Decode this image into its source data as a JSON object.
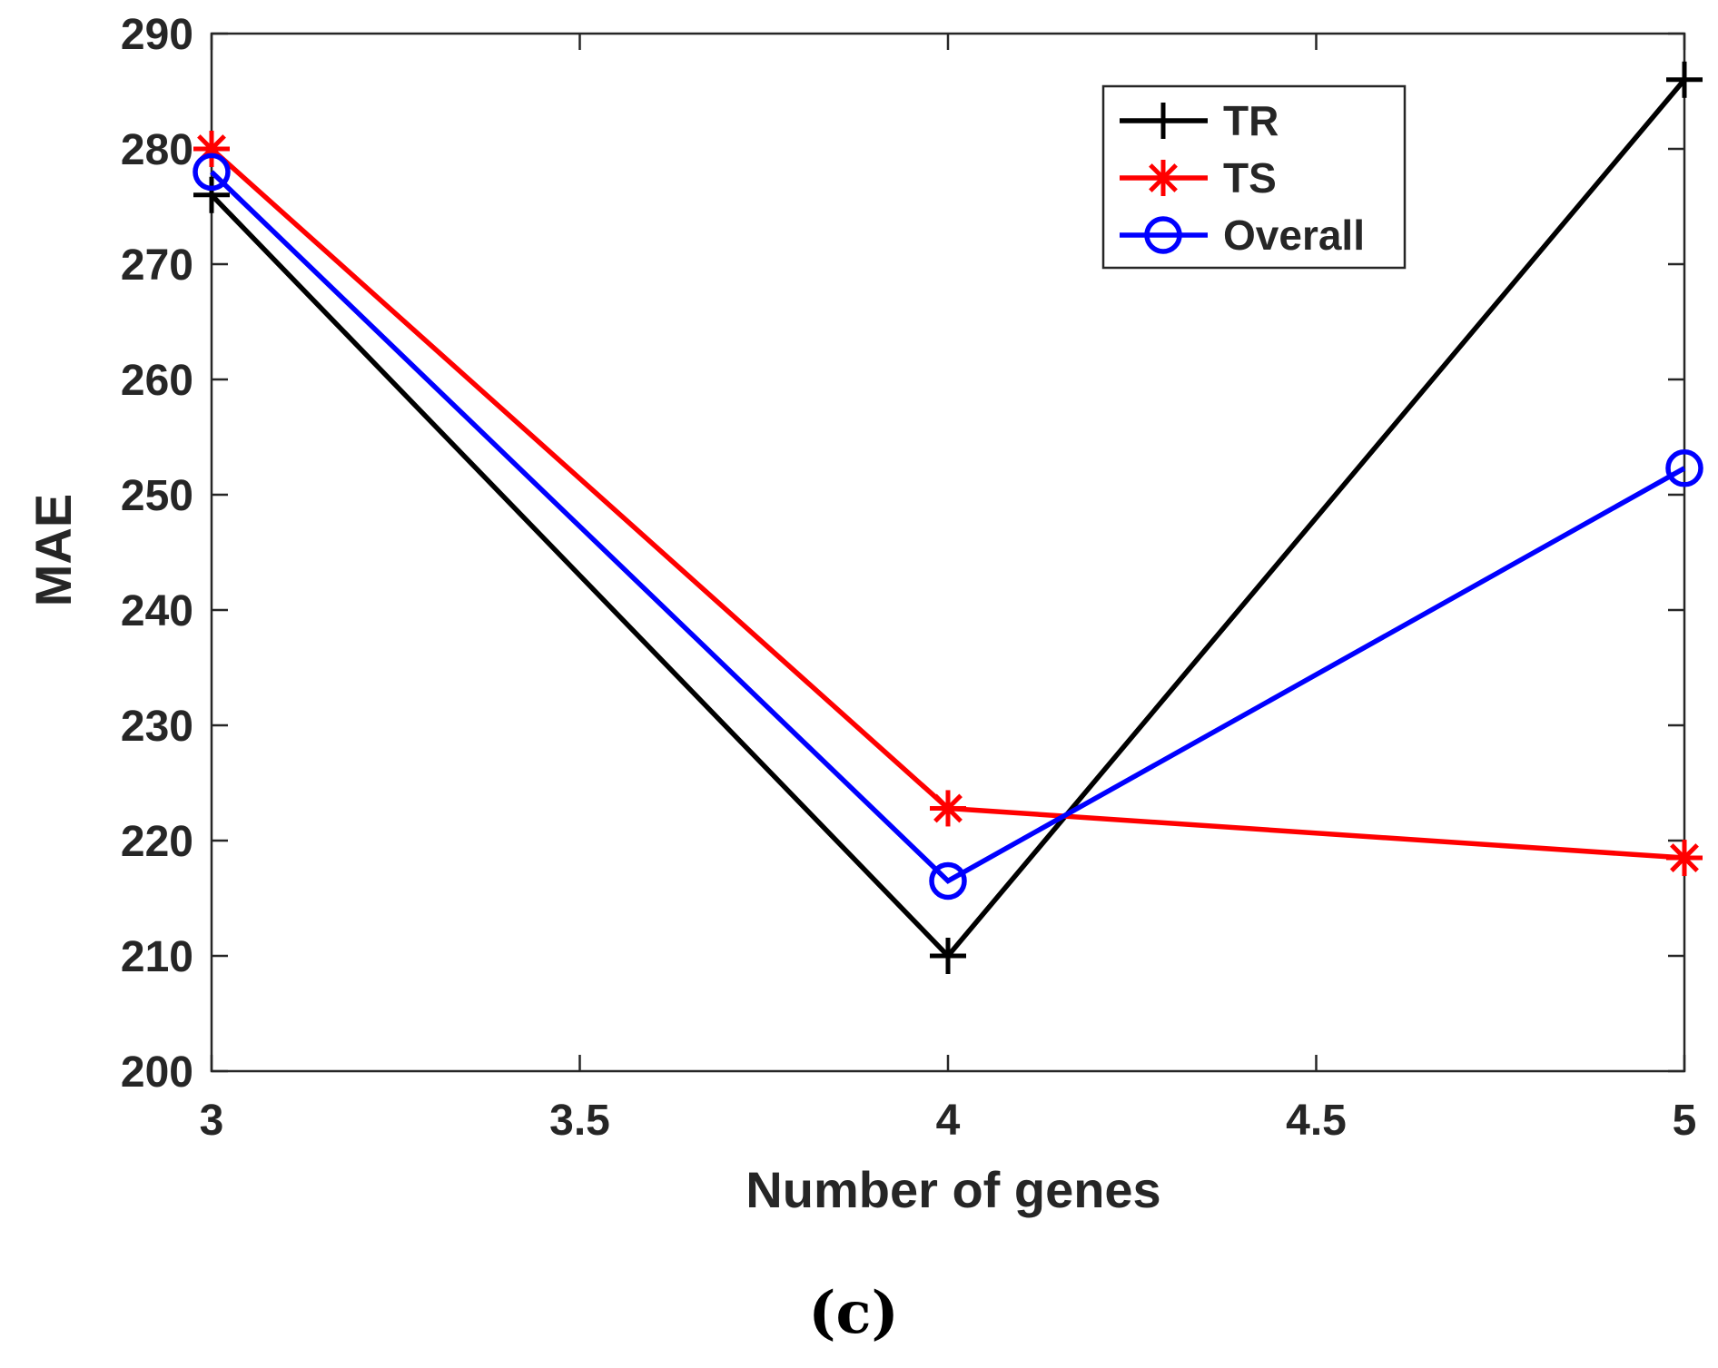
{
  "chart_data": {
    "type": "line",
    "xlabel": "Number of genes",
    "ylabel": "MAE",
    "xlim": [
      3,
      5
    ],
    "ylim": [
      200,
      290
    ],
    "xticks": [
      "3",
      "3.5",
      "4",
      "4.5",
      "5"
    ],
    "yticks": [
      "200",
      "210",
      "220",
      "230",
      "240",
      "250",
      "260",
      "270",
      "280",
      "290"
    ],
    "x": [
      3,
      4,
      5
    ],
    "series": [
      {
        "name": "TR",
        "values": [
          276,
          210,
          286
        ],
        "color": "#000000",
        "marker": "plus"
      },
      {
        "name": "TS",
        "values": [
          280,
          222.8,
          218.5
        ],
        "color": "#ff0000",
        "marker": "asterisk"
      },
      {
        "name": "Overall",
        "values": [
          278,
          216.5,
          252.3
        ],
        "color": "#0000ff",
        "marker": "circle"
      }
    ],
    "legend_position": "top-right",
    "grid": false
  },
  "caption": "(c)"
}
